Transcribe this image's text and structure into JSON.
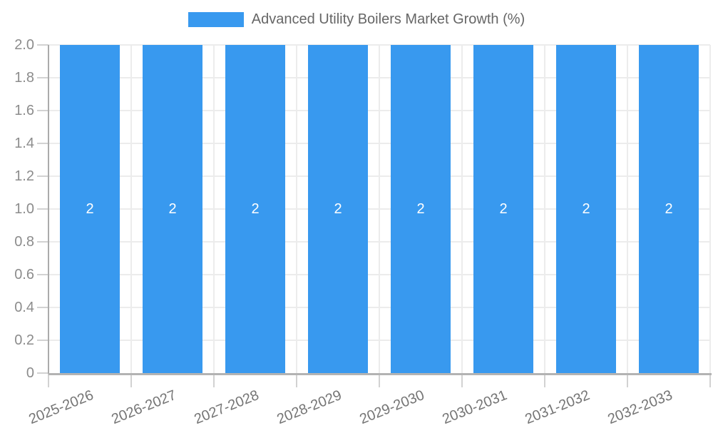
{
  "chart_data": {
    "type": "bar",
    "title": "Advanced Utility Boilers Market Growth (%)",
    "categories": [
      "2025-2026",
      "2026-2027",
      "2027-2028",
      "2028-2029",
      "2029-2030",
      "2030-2031",
      "2031-2032",
      "2032-2033"
    ],
    "series": [
      {
        "name": "Advanced Utility Boilers Market Growth (%)",
        "values": [
          2,
          2,
          2,
          2,
          2,
          2,
          2,
          2
        ]
      }
    ],
    "bar_value_labels": [
      "2",
      "2",
      "2",
      "2",
      "2",
      "2",
      "2",
      "2"
    ],
    "xlabel": "",
    "ylabel": "",
    "ylim": [
      0,
      2
    ],
    "y_tick_step": 0.2,
    "y_tick_labels": [
      "0",
      "0.2",
      "0.4",
      "0.6",
      "0.8",
      "1.0",
      "1.2",
      "1.4",
      "1.6",
      "1.8",
      "2.0"
    ],
    "grid": true,
    "legend_position": "top",
    "colors": {
      "bar": "#3899ef",
      "grid": "#ececec",
      "tick": "#d2d2d2",
      "axis": "#b3b3b3",
      "y_axis_line": "#ababab",
      "y_tick_text": "#8c8c8c",
      "x_tick_text": "#757575",
      "legend_text": "#666666",
      "value_text": "#ffffff",
      "background": "#ffffff"
    }
  }
}
